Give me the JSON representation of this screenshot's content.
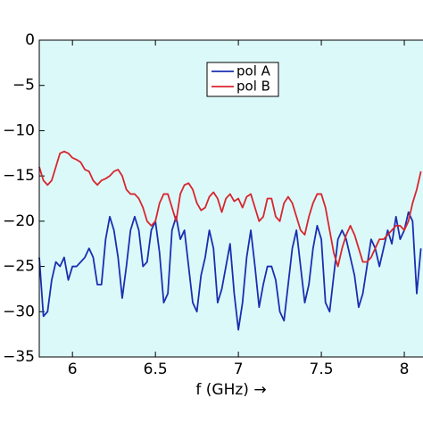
{
  "chart_data": {
    "type": "line",
    "x_label": "f (GHz) →",
    "x": [
      5.8,
      5.825,
      5.85,
      5.875,
      5.9,
      5.925,
      5.95,
      5.975,
      6.0,
      6.025,
      6.05,
      6.075,
      6.1,
      6.125,
      6.15,
      6.175,
      6.2,
      6.225,
      6.25,
      6.275,
      6.3,
      6.325,
      6.35,
      6.375,
      6.4,
      6.425,
      6.45,
      6.475,
      6.5,
      6.525,
      6.55,
      6.575,
      6.6,
      6.625,
      6.65,
      6.675,
      6.7,
      6.725,
      6.75,
      6.775,
      6.8,
      6.825,
      6.85,
      6.875,
      6.9,
      6.925,
      6.95,
      6.975,
      7.0,
      7.025,
      7.05,
      7.075,
      7.1,
      7.125,
      7.15,
      7.175,
      7.2,
      7.225,
      7.25,
      7.275,
      7.3,
      7.325,
      7.35,
      7.375,
      7.4,
      7.425,
      7.45,
      7.475,
      7.5,
      7.525,
      7.55,
      7.575,
      7.6,
      7.625,
      7.65,
      7.675,
      7.7,
      7.725,
      7.75,
      7.775,
      7.8,
      7.825,
      7.85,
      7.875,
      7.9,
      7.925,
      7.95,
      7.975,
      8.0,
      8.025,
      8.05,
      8.075,
      8.1
    ],
    "series": [
      {
        "name": "pol A",
        "color": "#1a2fb0",
        "values": [
          -24,
          -30.5,
          -30,
          -26.5,
          -24.5,
          -25,
          -24,
          -26.5,
          -25,
          -25,
          -24.5,
          -24,
          -23,
          -24,
          -27,
          -27,
          -22,
          -19.5,
          -21,
          -24,
          -28.5,
          -25,
          -21,
          -19.5,
          -21,
          -25,
          -24.5,
          -21,
          -20,
          -23.5,
          -29,
          -28,
          -21,
          -19.5,
          -22,
          -21,
          -25,
          -29,
          -30,
          -26,
          -24,
          -21,
          -23,
          -29,
          -27.5,
          -25,
          -22.5,
          -28,
          -32,
          -29,
          -24,
          -21,
          -25,
          -29.5,
          -27,
          -25,
          -25,
          -26.5,
          -30,
          -31,
          -27,
          -23,
          -21,
          -25,
          -29,
          -27,
          -23,
          -20.5,
          -22,
          -29,
          -30,
          -26,
          -22,
          -21,
          -22,
          -24,
          -26,
          -29.5,
          -28,
          -25,
          -22,
          -23,
          -25,
          -23,
          -21,
          -22.5,
          -19.5,
          -22,
          -21,
          -19,
          -20,
          -28,
          -23
        ]
      },
      {
        "name": "pol B",
        "color": "#d8262e",
        "values": [
          -14,
          -15.5,
          -16,
          -15.5,
          -14,
          -12.5,
          -12.3,
          -12.5,
          -13,
          -13.2,
          -13.5,
          -14.3,
          -14.5,
          -15.5,
          -16,
          -15.5,
          -15.3,
          -15,
          -14.5,
          -14.3,
          -15,
          -16.5,
          -17,
          -17,
          -17.5,
          -18.5,
          -20,
          -20.5,
          -20,
          -18,
          -17,
          -17,
          -18.5,
          -20,
          -17,
          -16,
          -15.8,
          -16.5,
          -18,
          -18.8,
          -18.5,
          -17.3,
          -16.8,
          -17.5,
          -19,
          -17.5,
          -17,
          -17.8,
          -17.5,
          -18.5,
          -17.3,
          -17,
          -18.5,
          -20,
          -19.5,
          -17.5,
          -17.5,
          -19.5,
          -20,
          -18,
          -17.3,
          -18,
          -19.5,
          -21,
          -21.5,
          -19.5,
          -18,
          -17,
          -17,
          -18.5,
          -21,
          -23.5,
          -25,
          -23,
          -21.5,
          -20.5,
          -21.5,
          -23,
          -24.5,
          -24.5,
          -24,
          -23,
          -22,
          -22,
          -21.5,
          -21,
          -20.5,
          -20.5,
          -21,
          -20,
          -18,
          -16.5,
          -14.5
        ]
      }
    ],
    "xlim": [
      5.8,
      8.11
    ],
    "ylim": [
      -35,
      0
    ],
    "xticks": [
      6,
      6.5,
      7,
      7.5,
      8
    ],
    "yticks": [
      0,
      {
        "value": -5,
        "label": "−5"
      },
      {
        "value": -10,
        "label": "−10"
      },
      {
        "value": -15,
        "label": "−15"
      },
      {
        "value": -20,
        "label": "−20"
      },
      {
        "value": -25,
        "label": "−25"
      },
      {
        "value": -30,
        "label": "−30"
      },
      {
        "value": -35,
        "label": "−35"
      }
    ],
    "background": "#dcf9fa"
  }
}
